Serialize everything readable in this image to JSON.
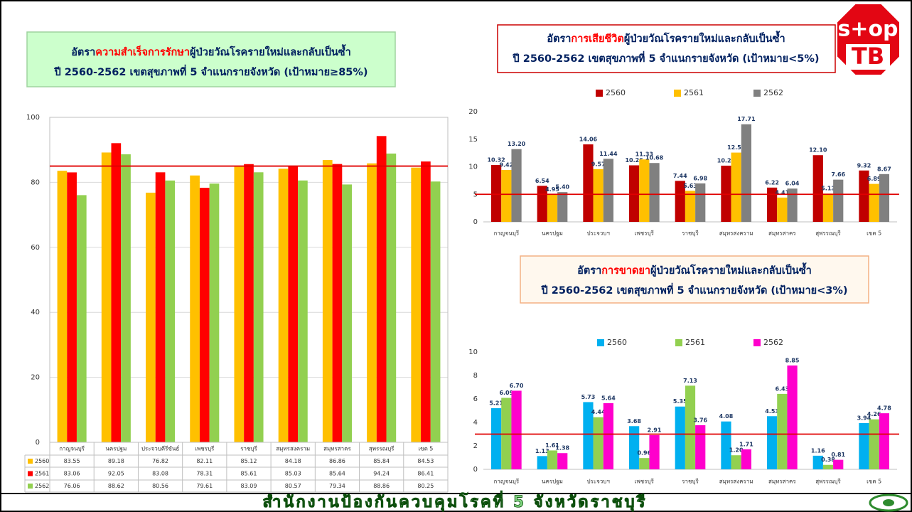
{
  "logo": [
    "s+op",
    "TB"
  ],
  "footer": "สำนักงานป้องกันควบคุมโรคที่ 5 จังหวัดราชบุรี",
  "chart_data": [
    {
      "type": "bar",
      "title": [
        "อัตรา",
        "ความสำเร็จการรักษา",
        "ผู้ป่วยวัณโรครายใหม่และกลับเป็นซ้ำ"
      ],
      "subtitle": "ปี 2560-2562 เขตสุขภาพที่ 5 จำแนกรายจังหวัด (เป้าหมาย≥85%)",
      "categories": [
        "กาญจนบุรี",
        "นครปฐม",
        "ประจวบคีรีขันธ์",
        "เพชรบุรี",
        "ราชบุรี",
        "สมุทรสงคราม",
        "สมุทรสาคร",
        "สุพรรณบุรี",
        "เขต 5"
      ],
      "series": [
        {
          "name": "2560",
          "color": "#FFC000",
          "values": [
            83.55,
            89.18,
            76.82,
            82.11,
            85.12,
            84.18,
            86.86,
            85.84,
            84.53
          ]
        },
        {
          "name": "2561",
          "color": "#FF0000",
          "values": [
            83.06,
            92.05,
            83.08,
            78.31,
            85.61,
            85.03,
            85.64,
            94.24,
            86.41
          ]
        },
        {
          "name": "2562",
          "color": "#92D050",
          "values": [
            76.06,
            88.62,
            80.56,
            79.61,
            83.09,
            80.57,
            79.34,
            88.86,
            80.25
          ]
        }
      ],
      "ylim": [
        0,
        100
      ],
      "yticks": [
        0,
        20,
        40,
        60,
        80,
        100
      ],
      "grid": true,
      "target": 85,
      "data_table": true
    },
    {
      "type": "bar",
      "title": [
        "อัตรา",
        "การเสียชีวิต",
        "ผู้ป่วยวัณโรครายใหม่และกลับเป็นซ้ำ"
      ],
      "subtitle": "ปี 2560-2562 เขตสุขภาพที่ 5 จำแนกรายจังหวัด (เป้าหมาย<5%)",
      "categories": [
        "กาญจนบุรี",
        "นครปฐม",
        "ประจวบฯ",
        "เพชรบุรี",
        "ราชบุรี",
        "สมุทรสงคราม",
        "สมุทรสาคร",
        "สุพรรณบุรี",
        "เขต 5"
      ],
      "series": [
        {
          "name": "2560",
          "color": "#C00000",
          "values": [
            10.32,
            6.54,
            14.06,
            10.26,
            7.44,
            10.2,
            6.22,
            12.1,
            9.32
          ],
          "value_labels": [
            "10.32",
            "6.54",
            "14.06",
            "10.26",
            "7.44",
            "10.20",
            "6.22",
            "12.10",
            "9.32"
          ]
        },
        {
          "name": "2561",
          "color": "#FFC000",
          "values": [
            9.42,
            4.95,
            9.57,
            11.33,
            5.63,
            12.57,
            4.41,
            5.13,
            6.89
          ],
          "value_labels": [
            "9.42",
            "4.95",
            "9.57",
            "11.33",
            "5.63",
            "12.57",
            "4.41",
            "5.13",
            "6.89"
          ]
        },
        {
          "name": "2562",
          "color": "#808080",
          "values": [
            13.2,
            5.4,
            11.44,
            10.68,
            6.98,
            17.71,
            6.04,
            7.66,
            8.67
          ],
          "value_labels": [
            "13.20",
            "5.40",
            "11.44",
            "10.68",
            "6.98",
            "17.71",
            "6.04",
            "7.66",
            "8.67"
          ]
        }
      ],
      "ylim": [
        0,
        20
      ],
      "yticks": [
        0,
        5,
        10,
        15,
        20
      ],
      "grid": false,
      "target": 5,
      "legend": "top"
    },
    {
      "type": "bar",
      "title": [
        "อัตรา",
        "การขาดยา",
        "ผู้ป่วยวัณโรครายใหม่และกลับเป็นซ้ำ"
      ],
      "subtitle": "ปี 2560-2562 เขตสุขภาพที่ 5 จำแนกรายจังหวัด (เป้าหมาย<3%)",
      "categories": [
        "กาญจนบุรี",
        "นครปฐม",
        "ประจวบฯ",
        "เพชรบุรี",
        "ราชบุรี",
        "สมุทรสงคราม",
        "สมุทรสาคร",
        "สุพรรณบุรี",
        "เขต 5"
      ],
      "series": [
        {
          "name": "2560",
          "color": "#00B0F0",
          "values": [
            5.21,
            1.13,
            5.73,
            3.68,
            5.35,
            4.08,
            4.53,
            1.16,
            3.94
          ],
          "value_labels": [
            "5.21",
            "1.13",
            "5.73",
            "3.68",
            "5.35",
            "4.08",
            "4.53",
            "1.16",
            "3.94"
          ]
        },
        {
          "name": "2561",
          "color": "#92D050",
          "values": [
            6.09,
            1.61,
            4.44,
            0.96,
            7.13,
            1.2,
            6.43,
            0.38,
            4.26
          ],
          "value_labels": [
            "6.09",
            "1.61",
            "4.44",
            "0.96",
            "7.13",
            "1.20",
            "6.43",
            "0.38",
            "4.26"
          ]
        },
        {
          "name": "2562",
          "color": "#FF00CC",
          "values": [
            6.7,
            1.38,
            5.64,
            2.91,
            3.76,
            1.71,
            8.85,
            0.81,
            4.78
          ],
          "value_labels": [
            "6.70",
            "1.38",
            "5.64",
            "2.91",
            "3.76",
            "1.71",
            "8.85",
            "0.81",
            "4.78"
          ]
        }
      ],
      "ylim": [
        0,
        10
      ],
      "yticks": [
        0,
        2,
        4,
        6,
        8,
        10
      ],
      "grid": false,
      "target": 3,
      "legend": "top"
    }
  ]
}
